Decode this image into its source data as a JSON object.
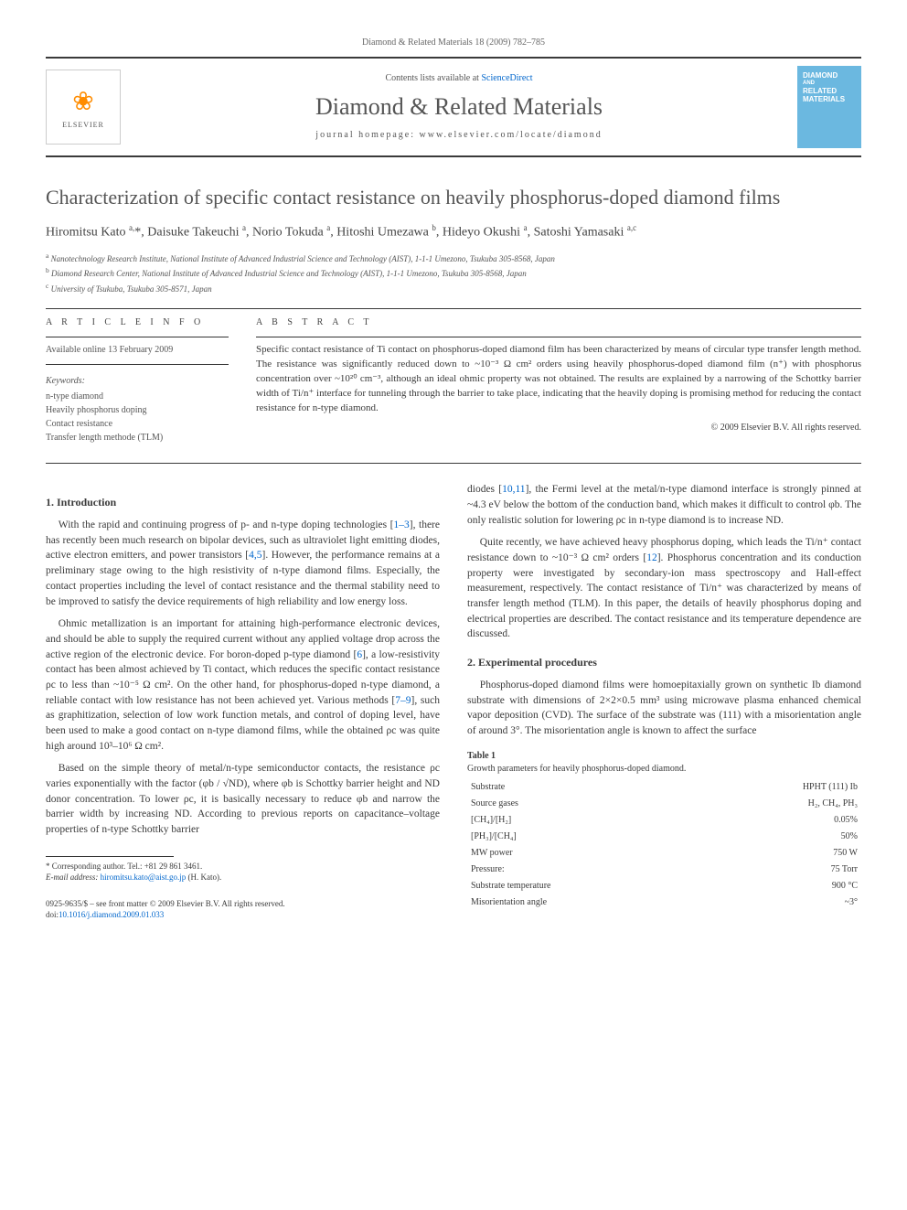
{
  "header": {
    "running_head": "Diamond & Related Materials 18 (2009) 782–785",
    "contents_prefix": "Contents lists available at ",
    "contents_link": "ScienceDirect",
    "journal_name": "Diamond & Related Materials",
    "homepage_prefix": "journal homepage: ",
    "homepage": "www.elsevier.com/locate/diamond",
    "publisher_label": "ELSEVIER",
    "cover_line1": "DIAMOND",
    "cover_line2": "RELATED",
    "cover_line3": "MATERIALS"
  },
  "title": "Characterization of specific contact resistance on heavily phosphorus-doped diamond films",
  "authors_html": "Hiromitsu Kato <sup>a,</sup>*, Daisuke Takeuchi <sup>a</sup>, Norio Tokuda <sup>a</sup>, Hitoshi Umezawa <sup>b</sup>, Hideyo Okushi <sup>a</sup>, Satoshi Yamasaki <sup>a,c</sup>",
  "affiliations": [
    "a Nanotechnology Research Institute, National Institute of Advanced Industrial Science and Technology (AIST), 1-1-1 Umezono, Tsukuba 305-8568, Japan",
    "b Diamond Research Center, National Institute of Advanced Industrial Science and Technology (AIST), 1-1-1 Umezono, Tsukuba 305-8568, Japan",
    "c University of Tsukuba, Tsukuba 305-8571, Japan"
  ],
  "article_info": {
    "heading": "A R T I C L E   I N F O",
    "online": "Available online 13 February 2009",
    "keywords_label": "Keywords:",
    "keywords": [
      "n-type diamond",
      "Heavily phosphorus doping",
      "Contact resistance",
      "Transfer length methode (TLM)"
    ]
  },
  "abstract": {
    "heading": "A B S T R A C T",
    "text": "Specific contact resistance of Ti contact on phosphorus-doped diamond film has been characterized by means of circular type transfer length method. The resistance was significantly reduced down to ~10⁻³ Ω cm² orders using heavily phosphorus-doped diamond film (n⁺) with phosphorus concentration over ~10²⁰ cm⁻³, although an ideal ohmic property was not obtained. The results are explained by a narrowing of the Schottky barrier width of Ti/n⁺ interface for tunneling through the barrier to take place, indicating that the heavily doping is promising method for reducing the contact resistance for n-type diamond.",
    "copyright": "© 2009 Elsevier B.V. All rights reserved."
  },
  "sections": {
    "s1_heading": "1. Introduction",
    "s1_p1": "With the rapid and continuing progress of p- and n-type doping technologies [1–3], there has recently been much research on bipolar devices, such as ultraviolet light emitting diodes, active electron emitters, and power transistors [4,5]. However, the performance remains at a preliminary stage owing to the high resistivity of n-type diamond films. Especially, the contact properties including the level of contact resistance and the thermal stability need to be improved to satisfy the device requirements of high reliability and low energy loss.",
    "s1_p2": "Ohmic metallization is an important for attaining high-performance electronic devices, and should be able to supply the required current without any applied voltage drop across the active region of the electronic device. For boron-doped p-type diamond [6], a low-resistivity contact has been almost achieved by Ti contact, which reduces the specific contact resistance ρc to less than ~10⁻⁵ Ω cm². On the other hand, for phosphorus-doped n-type diamond, a reliable contact with low resistance has not been achieved yet. Various methods [7–9], such as graphitization, selection of low work function metals, and control of doping level, have been used to make a good contact on n-type diamond films, while the obtained ρc was quite high around 10³–10⁶ Ω cm².",
    "s1_p3": "Based on the simple theory of metal/n-type semiconductor contacts, the resistance ρc varies exponentially with the factor (φb / √ND), where φb is Schottky barrier height and ND donor concentration. To lower ρc, it is basically necessary to reduce φb and narrow the barrier width by increasing ND. According to previous reports on capacitance–voltage properties of n-type Schottky barrier",
    "s1_p4": "diodes [10,11], the Fermi level at the metal/n-type diamond interface is strongly pinned at ~4.3 eV below the bottom of the conduction band, which makes it difficult to control φb. The only realistic solution for lowering ρc in n-type diamond is to increase ND.",
    "s1_p5": "Quite recently, we have achieved heavy phosphorus doping, which leads the Ti/n⁺ contact resistance down to ~10⁻³ Ω cm² orders [12]. Phosphorus concentration and its conduction property were investigated by secondary-ion mass spectroscopy and Hall-effect measurement, respectively. The contact resistance of Ti/n⁺ was characterized by means of transfer length method (TLM). In this paper, the details of heavily phosphorus doping and electrical properties are described. The contact resistance and its temperature dependence are discussed.",
    "s2_heading": "2. Experimental procedures",
    "s2_p1": "Phosphorus-doped diamond films were homoepitaxially grown on synthetic Ib diamond substrate with dimensions of 2×2×0.5 mm³ using microwave plasma enhanced chemical vapor deposition (CVD). The surface of the substrate was (111) with a misorientation angle of around 3°. The misorientation angle is known to affect the surface"
  },
  "table1": {
    "label": "Table 1",
    "caption": "Growth parameters for heavily phosphorus-doped diamond.",
    "rows": [
      [
        "Substrate",
        "HPHT (111) Ib"
      ],
      [
        "Source gases",
        "H₂, CH₄, PH₃"
      ],
      [
        "[CH₄]/[H₂]",
        "0.05%"
      ],
      [
        "[PH₃]/[CH₄]",
        "50%"
      ],
      [
        "MW power",
        "750 W"
      ],
      [
        "Pressure:",
        "75 Torr"
      ],
      [
        "Substrate temperature",
        "900 °C"
      ],
      [
        "Misorientation angle",
        "~3°"
      ]
    ]
  },
  "footnote": {
    "corr": "* Corresponding author. Tel.: +81 29 861 3461.",
    "email_label": "E-mail address: ",
    "email": "hiromitsu.kato@aist.go.jp",
    "email_suffix": " (H. Kato)."
  },
  "bottom": {
    "front_matter": "0925-9635/$ – see front matter © 2009 Elsevier B.V. All rights reserved.",
    "doi_prefix": "doi:",
    "doi": "10.1016/j.diamond.2009.01.033"
  },
  "colors": {
    "link": "#0066cc",
    "text": "#3a3a3a",
    "cover_bg": "#6bb8e0",
    "elsevier_orange": "#ff8c00"
  }
}
